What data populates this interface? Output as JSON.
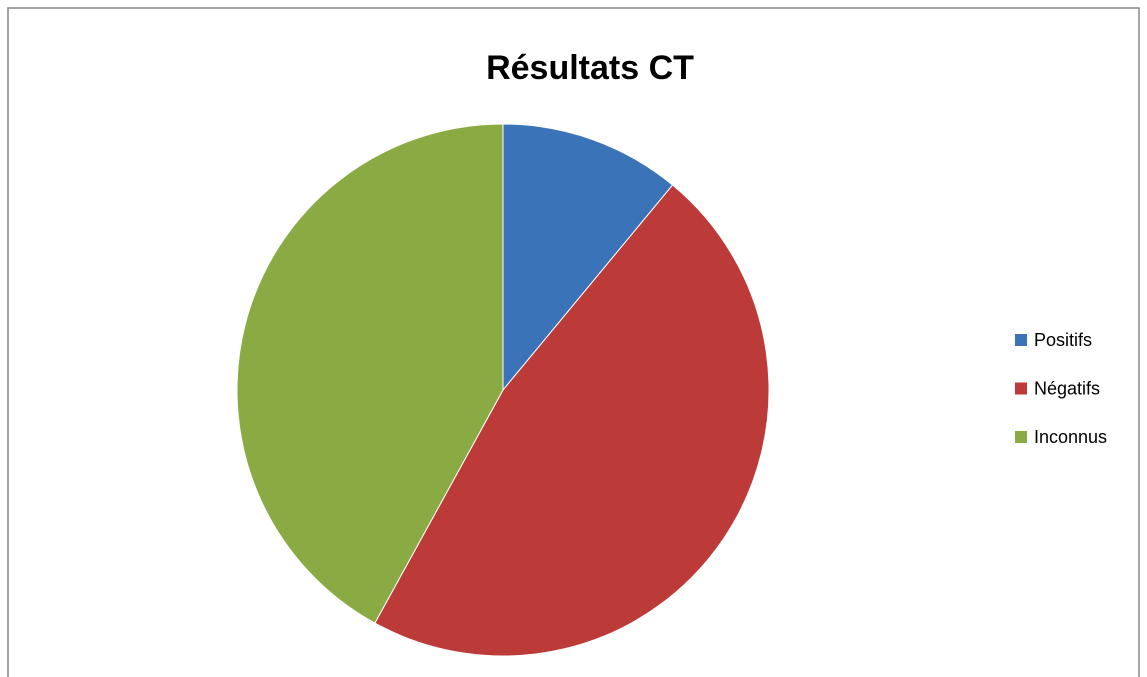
{
  "chart_data": {
    "type": "pie",
    "title": "Résultats CT",
    "categories": [
      "Positifs",
      "Négatifs",
      "Inconnus"
    ],
    "values": [
      11,
      47,
      42
    ],
    "colors": [
      "#3b73b9",
      "#bc3a37",
      "#8aab44"
    ],
    "legend": "right"
  }
}
